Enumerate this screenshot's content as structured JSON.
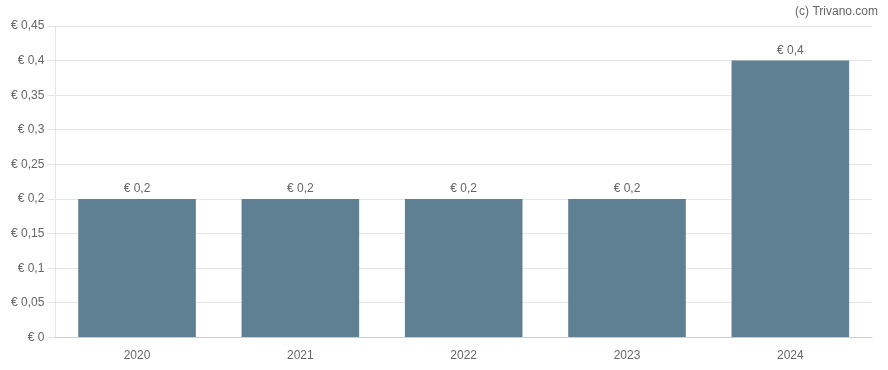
{
  "chart_data": {
    "type": "bar",
    "categories": [
      "2020",
      "2021",
      "2022",
      "2023",
      "2024"
    ],
    "values": [
      0.2,
      0.2,
      0.2,
      0.2,
      0.4
    ],
    "value_labels": [
      "€ 0,2",
      "€ 0,2",
      "€ 0,2",
      "€ 0,2",
      "€ 0,4"
    ],
    "color": "#5f7f93",
    "ylim": [
      0,
      0.45
    ],
    "yticks": [
      {
        "value": 0,
        "label": "€ 0"
      },
      {
        "value": 0.05,
        "label": "€ 0,05"
      },
      {
        "value": 0.1,
        "label": "€ 0,1"
      },
      {
        "value": 0.15,
        "label": "€ 0,15"
      },
      {
        "value": 0.2,
        "label": "€ 0,2"
      },
      {
        "value": 0.25,
        "label": "€ 0,25"
      },
      {
        "value": 0.3,
        "label": "€ 0,3"
      },
      {
        "value": 0.35,
        "label": "€ 0,35"
      },
      {
        "value": 0.4,
        "label": "€ 0,4"
      },
      {
        "value": 0.45,
        "label": "€ 0,45"
      }
    ],
    "grid": true,
    "data_labels": true,
    "annotations": [
      "(c) Trivano.com"
    ]
  }
}
